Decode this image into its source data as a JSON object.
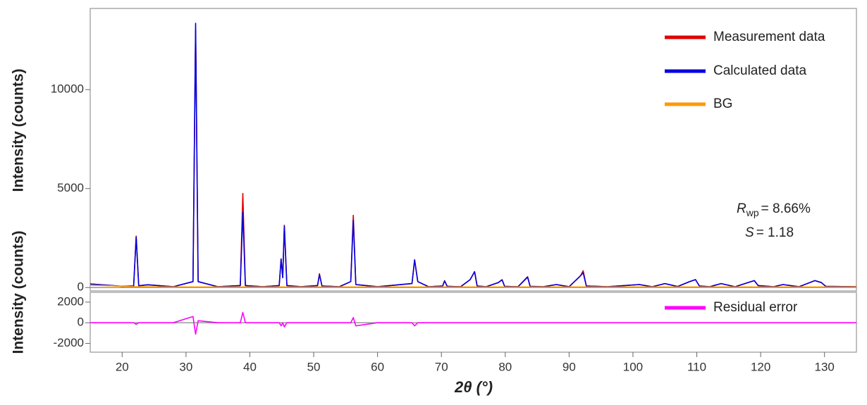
{
  "chart_data": {
    "type": "line",
    "xlabel": "2θ (°)",
    "xlim": [
      15,
      135
    ],
    "xticks": [
      20,
      30,
      40,
      50,
      60,
      70,
      80,
      90,
      100,
      110,
      120,
      130
    ],
    "x": [
      15,
      18,
      20,
      21.8,
      22.2,
      22.6,
      24,
      28,
      31.1,
      31.5,
      31.9,
      35,
      38.5,
      38.9,
      39.3,
      42,
      44.6,
      44.9,
      45.15,
      45.4,
      45.8,
      48,
      50.6,
      50.9,
      51.3,
      54,
      55.8,
      56.2,
      56.6,
      60,
      65.4,
      65.8,
      66.3,
      68,
      70.2,
      70.5,
      70.9,
      73,
      74.5,
      75.2,
      75.6,
      77,
      78.9,
      79.5,
      79.9,
      82,
      83.5,
      83.9,
      86,
      88,
      90,
      91.8,
      92.2,
      92.7,
      96,
      101,
      103,
      105,
      107,
      108.9,
      109.8,
      110.4,
      112,
      113.8,
      116,
      118,
      119,
      119.6,
      122,
      123.5,
      126,
      128.5,
      129.5,
      130.2,
      135
    ],
    "panels": [
      {
        "ylabel": "Intensity (counts)",
        "ylim": [
          -170,
          14100
        ],
        "yticks": [
          0,
          5000,
          10000
        ],
        "series": [
          {
            "name": "Measurement data",
            "color": "#e00000",
            "values": [
              180,
              110,
              60,
              80,
              2600,
              90,
              140,
              40,
              300,
              13000,
              300,
              40,
              100,
              4750,
              100,
              40,
              100,
              1450,
              500,
              3150,
              100,
              40,
              100,
              700,
              80,
              40,
              300,
              3650,
              150,
              40,
              200,
              1400,
              300,
              40,
              80,
              350,
              60,
              40,
              400,
              800,
              80,
              40,
              250,
              400,
              60,
              40,
              550,
              60,
              40,
              150,
              40,
              600,
              850,
              80,
              40,
              150,
              40,
              200,
              50,
              300,
              400,
              80,
              40,
              200,
              40,
              250,
              350,
              100,
              40,
              150,
              40,
              350,
              250,
              60,
              40
            ]
          },
          {
            "name": "Calculated data",
            "color": "#0000e0",
            "values": [
              180,
              110,
              60,
              80,
              2550,
              90,
              140,
              40,
              300,
              13350,
              300,
              40,
              100,
              3800,
              100,
              40,
              100,
              1450,
              500,
              3100,
              100,
              40,
              100,
              650,
              80,
              40,
              300,
              3400,
              150,
              40,
              200,
              1400,
              300,
              40,
              80,
              330,
              60,
              40,
              400,
              800,
              80,
              40,
              250,
              380,
              60,
              40,
              520,
              60,
              40,
              150,
              40,
              600,
              750,
              80,
              40,
              150,
              40,
              200,
              50,
              300,
              400,
              80,
              40,
              200,
              40,
              250,
              350,
              100,
              40,
              150,
              40,
              350,
              250,
              60,
              40
            ]
          },
          {
            "name": "BG",
            "color": "#ff9900",
            "values": [
              120,
              90,
              60,
              40,
              40,
              40,
              35,
              30,
              30,
              30,
              30,
              30,
              30,
              30,
              30,
              30,
              30,
              30,
              30,
              30,
              30,
              30,
              30,
              30,
              30,
              30,
              30,
              30,
              30,
              30,
              30,
              30,
              30,
              30,
              30,
              30,
              30,
              30,
              30,
              30,
              30,
              30,
              30,
              30,
              30,
              30,
              30,
              30,
              30,
              30,
              30,
              30,
              30,
              30,
              30,
              30,
              30,
              30,
              30,
              30,
              30,
              30,
              30,
              30,
              30,
              30,
              30,
              30,
              30,
              30,
              30,
              30,
              30,
              30,
              30
            ]
          }
        ],
        "legend": "upper right",
        "annotations": [
          {
            "symbol": "R",
            "subscript": "wp",
            "text": "= 8.66%"
          },
          {
            "symbol": "S",
            "text": "= 1.18"
          }
        ]
      },
      {
        "ylabel": "Intensity (counts)",
        "ylim": [
          -2850,
          2950
        ],
        "yticks": [
          -2000,
          0,
          2000
        ],
        "series": [
          {
            "name": "Residual error",
            "color": "#ff00ff",
            "values": [
              0,
              0,
              0,
              0,
              -150,
              0,
              0,
              0,
              600,
              -1100,
              200,
              0,
              0,
              1000,
              0,
              0,
              0,
              -300,
              0,
              -400,
              0,
              0,
              0,
              0,
              0,
              0,
              0,
              500,
              -300,
              0,
              0,
              -300,
              0,
              0,
              0,
              0,
              0,
              0,
              0,
              0,
              0,
              0,
              0,
              0,
              0,
              0,
              0,
              0,
              0,
              0,
              0,
              0,
              0,
              0,
              0,
              0,
              0,
              0,
              0,
              0,
              0,
              0,
              0,
              0,
              0,
              0,
              0,
              0,
              0,
              0,
              0,
              0,
              0,
              0,
              0
            ]
          }
        ],
        "legend": "upper right"
      }
    ]
  }
}
